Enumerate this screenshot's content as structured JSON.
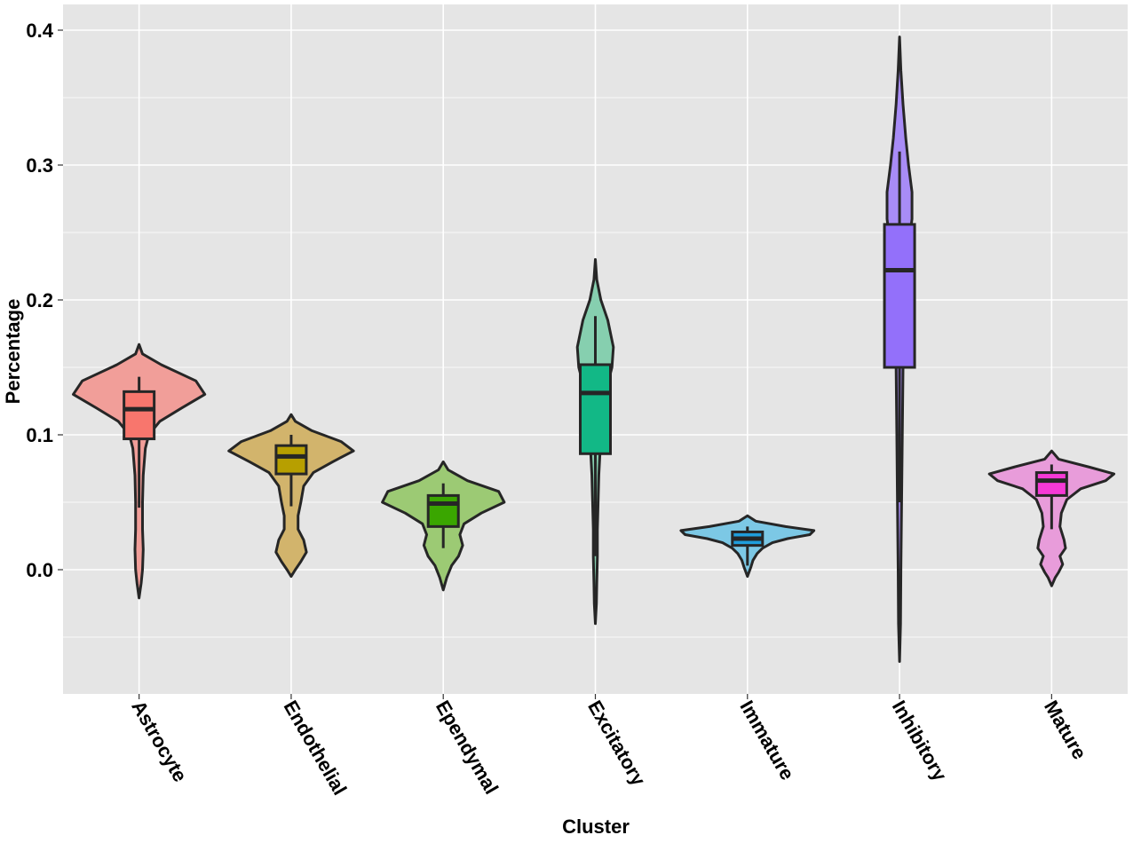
{
  "chart_data": {
    "type": "violin",
    "title": "",
    "xlabel": "Cluster",
    "ylabel": "Percentage",
    "ylim": [
      -0.092,
      0.42
    ],
    "yticks": [
      0.0,
      0.1,
      0.2,
      0.3,
      0.4
    ],
    "ytick_labels": [
      "0.0",
      "0.1",
      "0.2",
      "0.3",
      "0.4"
    ],
    "grid": true,
    "background": "#e5e5e5",
    "grid_color": "#ffffff",
    "outline_color": "#262626",
    "categories": [
      "Astrocyte",
      "Endothelial",
      "Ependymal",
      "Excitatory",
      "Immature",
      "Inhibitory",
      "Mature"
    ],
    "series": [
      {
        "category": "Astrocyte",
        "violin_color": "#f19e99",
        "box_color": "#f8766d",
        "violin_min": -0.021,
        "violin_max": 0.167,
        "box": {
          "q1": 0.097,
          "median": 0.119,
          "q3": 0.132,
          "whisker_low": 0.046,
          "whisker_high": 0.143
        },
        "density": [
          [
            0.167,
            0.0
          ],
          [
            0.16,
            0.05
          ],
          [
            0.152,
            0.32
          ],
          [
            0.14,
            0.82
          ],
          [
            0.13,
            0.95
          ],
          [
            0.12,
            0.62
          ],
          [
            0.11,
            0.3
          ],
          [
            0.1,
            0.14
          ],
          [
            0.09,
            0.09
          ],
          [
            0.07,
            0.06
          ],
          [
            0.05,
            0.05
          ],
          [
            0.03,
            0.05
          ],
          [
            0.015,
            0.06
          ],
          [
            0.0,
            0.05
          ],
          [
            -0.01,
            0.03
          ],
          [
            -0.021,
            0.0
          ]
        ]
      },
      {
        "category": "Endothelial",
        "violin_color": "#d2b46c",
        "box_color": "#b79f00",
        "violin_min": -0.005,
        "violin_max": 0.115,
        "box": {
          "q1": 0.071,
          "median": 0.084,
          "q3": 0.092,
          "whisker_low": 0.047,
          "whisker_high": 0.1
        },
        "density": [
          [
            0.115,
            0.0
          ],
          [
            0.11,
            0.06
          ],
          [
            0.103,
            0.3
          ],
          [
            0.095,
            0.72
          ],
          [
            0.088,
            0.9
          ],
          [
            0.08,
            0.6
          ],
          [
            0.072,
            0.32
          ],
          [
            0.062,
            0.18
          ],
          [
            0.05,
            0.14
          ],
          [
            0.04,
            0.1
          ],
          [
            0.03,
            0.1
          ],
          [
            0.022,
            0.18
          ],
          [
            0.013,
            0.22
          ],
          [
            0.006,
            0.14
          ],
          [
            0.0,
            0.06
          ],
          [
            -0.005,
            0.0
          ]
        ]
      },
      {
        "category": "Ependymal",
        "violin_color": "#9cca74",
        "box_color": "#3aa600",
        "violin_min": -0.015,
        "violin_max": 0.08,
        "box": {
          "q1": 0.032,
          "median": 0.049,
          "q3": 0.055,
          "whisker_low": 0.016,
          "whisker_high": 0.064
        },
        "density": [
          [
            0.08,
            0.0
          ],
          [
            0.074,
            0.07
          ],
          [
            0.066,
            0.35
          ],
          [
            0.058,
            0.8
          ],
          [
            0.05,
            0.88
          ],
          [
            0.042,
            0.55
          ],
          [
            0.034,
            0.3
          ],
          [
            0.026,
            0.24
          ],
          [
            0.018,
            0.28
          ],
          [
            0.01,
            0.22
          ],
          [
            0.003,
            0.12
          ],
          [
            -0.006,
            0.05
          ],
          [
            -0.015,
            0.0
          ]
        ]
      },
      {
        "category": "Excitatory",
        "violin_color": "#86cfaf",
        "box_color": "#12b886",
        "violin_min": -0.04,
        "violin_max": 0.23,
        "box": {
          "q1": 0.086,
          "median": 0.131,
          "q3": 0.152,
          "whisker_low": 0.01,
          "whisker_high": 0.188
        },
        "density": [
          [
            0.23,
            0.0
          ],
          [
            0.215,
            0.02
          ],
          [
            0.2,
            0.08
          ],
          [
            0.185,
            0.18
          ],
          [
            0.165,
            0.26
          ],
          [
            0.15,
            0.24
          ],
          [
            0.13,
            0.14
          ],
          [
            0.11,
            0.09
          ],
          [
            0.09,
            0.07
          ],
          [
            0.07,
            0.05
          ],
          [
            0.05,
            0.04
          ],
          [
            0.03,
            0.03
          ],
          [
            0.01,
            0.03
          ],
          [
            -0.01,
            0.02
          ],
          [
            -0.025,
            0.015
          ],
          [
            -0.04,
            0.0
          ]
        ]
      },
      {
        "category": "Immature",
        "violin_color": "#7cc8e5",
        "box_color": "#1f9ddb",
        "violin_min": -0.005,
        "violin_max": 0.04,
        "box": {
          "q1": 0.018,
          "median": 0.023,
          "q3": 0.028,
          "whisker_low": 0.003,
          "whisker_high": 0.032
        },
        "density": [
          [
            0.04,
            0.0
          ],
          [
            0.036,
            0.12
          ],
          [
            0.032,
            0.55
          ],
          [
            0.029,
            0.96
          ],
          [
            0.026,
            0.9
          ],
          [
            0.023,
            0.58
          ],
          [
            0.02,
            0.36
          ],
          [
            0.016,
            0.22
          ],
          [
            0.012,
            0.14
          ],
          [
            0.007,
            0.08
          ],
          [
            0.002,
            0.05
          ],
          [
            -0.005,
            0.0
          ]
        ]
      },
      {
        "category": "Inhibitory",
        "violin_color": "#a88cf6",
        "box_color": "#9370fa",
        "violin_min": -0.068,
        "violin_max": 0.395,
        "box": {
          "q1": 0.15,
          "median": 0.222,
          "q3": 0.256,
          "whisker_low": 0.05,
          "whisker_high": 0.31
        },
        "density": [
          [
            0.395,
            0.0
          ],
          [
            0.37,
            0.02
          ],
          [
            0.345,
            0.05
          ],
          [
            0.32,
            0.09
          ],
          [
            0.3,
            0.13
          ],
          [
            0.28,
            0.18
          ],
          [
            0.26,
            0.18
          ],
          [
            0.24,
            0.13
          ],
          [
            0.22,
            0.1
          ],
          [
            0.19,
            0.07
          ],
          [
            0.15,
            0.05
          ],
          [
            0.1,
            0.04
          ],
          [
            0.05,
            0.03
          ],
          [
            0.0,
            0.02
          ],
          [
            -0.04,
            0.015
          ],
          [
            -0.068,
            0.0
          ]
        ]
      },
      {
        "category": "Mature",
        "violin_color": "#e89cda",
        "box_color": "#f639d6",
        "violin_min": -0.012,
        "violin_max": 0.088,
        "box": {
          "q1": 0.055,
          "median": 0.066,
          "q3": 0.072,
          "whisker_low": 0.03,
          "whisker_high": 0.078
        },
        "density": [
          [
            0.088,
            0.0
          ],
          [
            0.082,
            0.1
          ],
          [
            0.076,
            0.55
          ],
          [
            0.071,
            0.9
          ],
          [
            0.066,
            0.78
          ],
          [
            0.06,
            0.42
          ],
          [
            0.052,
            0.22
          ],
          [
            0.042,
            0.14
          ],
          [
            0.032,
            0.12
          ],
          [
            0.022,
            0.18
          ],
          [
            0.016,
            0.2
          ],
          [
            0.01,
            0.12
          ],
          [
            0.004,
            0.16
          ],
          [
            -0.002,
            0.1
          ],
          [
            -0.006,
            0.05
          ],
          [
            -0.012,
            0.0
          ]
        ]
      }
    ]
  }
}
